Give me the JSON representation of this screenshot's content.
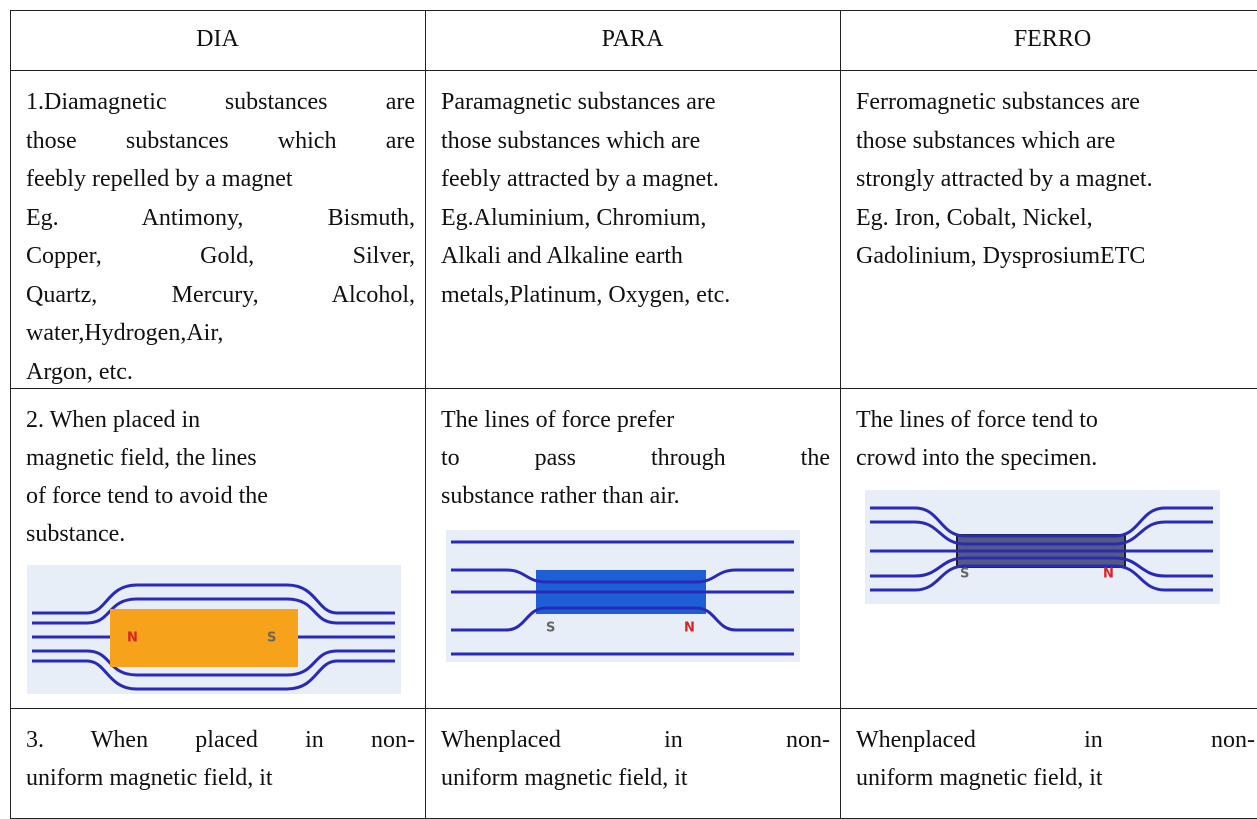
{
  "table": {
    "header": [
      "DIA",
      "PARA",
      "FERRO"
    ],
    "rows": [
      [
        {
          "lines": [
            "1.Diamagnetic substances are",
            "those substances which are",
            "feebly repelled by a magnet",
            "Eg. Antimony, Bismuth,",
            "Copper, Gold, Silver,",
            "Quartz, Mercury, Alcohol,",
            "water,Hydrogen,Air,",
            "Argon, etc."
          ]
        },
        {
          "lines": [
            "Paramagnetic substances are",
            "those substances which are",
            "feebly attracted by a magnet.",
            "Eg.Aluminium, Chromium,",
            "Alkali and Alkaline earth",
            "metals,Platinum, Oxygen, etc."
          ]
        },
        {
          "lines": [
            "Ferromagnetic substances are",
            "those substances which are",
            "strongly attracted by a magnet.",
            "Eg. Iron, Cobalt, Nickel,",
            "Gadolinium, DysprosiumETC"
          ]
        }
      ],
      [
        {
          "lines": [
            "2. When placed in",
            "magnetic field, the lines",
            "of force tend to avoid the",
            "substance."
          ],
          "figure_labels": [
            "N",
            "S"
          ]
        },
        {
          "lines": [
            "The lines of force prefer",
            "to pass through the",
            "substance rather than air."
          ],
          "figure_labels": [
            "S",
            "N"
          ]
        },
        {
          "lines": [
            "The lines of force tend to",
            "crowd into the specimen."
          ],
          "figure_labels": [
            "S",
            "N"
          ]
        }
      ],
      [
        {
          "lines": [
            "3. When placed in non-",
            "uniform magnetic field, it"
          ]
        },
        {
          "lines": [
            "Whenplaced in non-",
            "uniform magnetic field, it"
          ]
        },
        {
          "lines": [
            "Whenplaced in non-",
            "uniform magnetic field, it"
          ]
        }
      ]
    ]
  }
}
